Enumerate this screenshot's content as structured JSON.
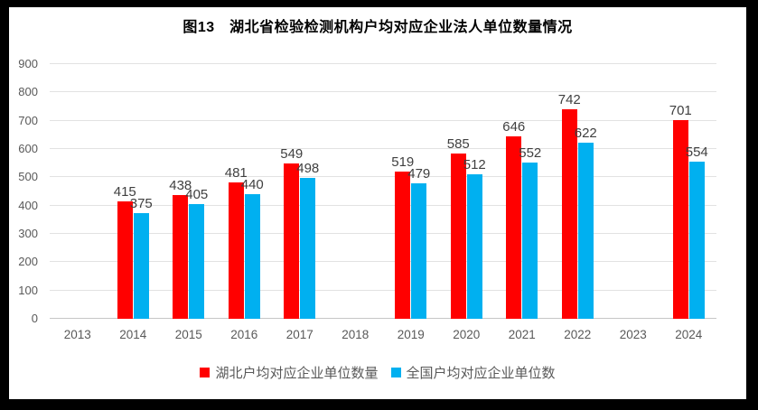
{
  "title": "图13　湖北省检验检测机构户均对应企业法人单位数量情况",
  "chart_data": {
    "type": "bar",
    "title": "图13　湖北省检验检测机构户均对应企业法人单位数量情况",
    "categories": [
      "2013",
      "2014",
      "2015",
      "2016",
      "2017",
      "2018",
      "2019",
      "2020",
      "2021",
      "2022",
      "2023",
      "2024"
    ],
    "series": [
      {
        "name": "湖北户均对应企业单位数量",
        "color": "#ff0000",
        "values": [
          null,
          415,
          438,
          481,
          549,
          null,
          519,
          585,
          646,
          742,
          null,
          701
        ]
      },
      {
        "name": "全国户均对应企业单位数",
        "color": "#00b0f0",
        "values": [
          null,
          375,
          405,
          440,
          498,
          null,
          479,
          512,
          552,
          622,
          null,
          554
        ]
      }
    ],
    "xlabel": "",
    "ylabel": "",
    "ylim": [
      0,
      900
    ],
    "ytick_step": 100,
    "grid": true,
    "legend_position": "bottom",
    "data_labels": true,
    "frame_color": "#000000",
    "gridline_color": "#e2e2e2",
    "label_color": "#404040",
    "axis_label_color": "#595959"
  }
}
